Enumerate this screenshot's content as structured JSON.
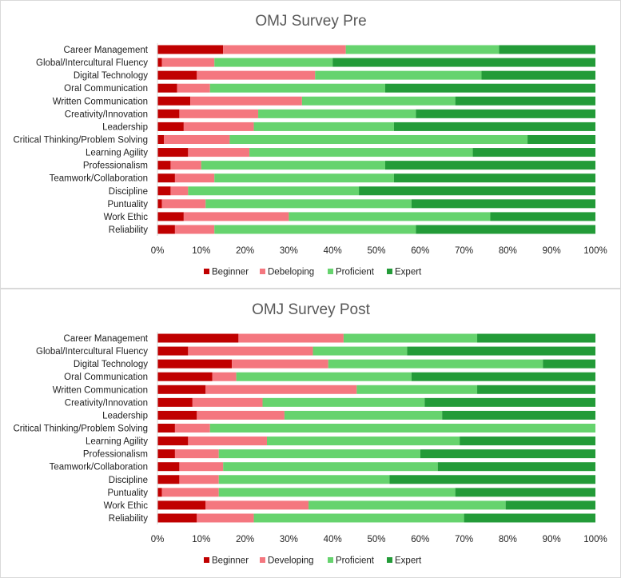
{
  "chart_data": [
    {
      "type": "bar",
      "stacked": "percent",
      "orientation": "horizontal",
      "title": "OMJ Survey Pre",
      "categories": [
        "Career Management",
        "Global/Intercultural Fluency",
        "Digital Technology",
        "Oral Communication",
        "Written Communication",
        "Creativity/Innovation",
        "Leadership",
        "Critical Thinking/Problem Solving",
        "Learning Agility",
        "Professionalism",
        "Teamwork/Collaboration",
        "Discipline",
        "Puntuality",
        "Work Ethic",
        "Reliability"
      ],
      "series": [
        {
          "name": "Beginner",
          "color": "#c00000",
          "values": [
            15,
            1,
            9,
            4.5,
            7.5,
            5,
            6,
            1.5,
            7,
            3,
            4,
            3,
            1,
            6,
            4
          ]
        },
        {
          "name": "Debeloping",
          "color": "#f4777f",
          "values": [
            28,
            12,
            27,
            7.5,
            25.5,
            18,
            16,
            15,
            14,
            7,
            9,
            4,
            10,
            24,
            9
          ]
        },
        {
          "name": "Proficient",
          "color": "#66d36e",
          "values": [
            35,
            27,
            38,
            40,
            35,
            36,
            32,
            68,
            51,
            42,
            41,
            39,
            47,
            46,
            46
          ]
        },
        {
          "name": "Expert",
          "color": "#239b38",
          "values": [
            22,
            60,
            26,
            48,
            32,
            41,
            46,
            15.5,
            28,
            48,
            46,
            54,
            42,
            24,
            41
          ]
        }
      ],
      "xlim": [
        0,
        100
      ],
      "xticks": [
        "0%",
        "10%",
        "20%",
        "30%",
        "40%",
        "50%",
        "60%",
        "70%",
        "80%",
        "90%",
        "100%"
      ],
      "legend": "bottom",
      "grid": false
    },
    {
      "type": "bar",
      "stacked": "percent",
      "orientation": "horizontal",
      "title": "OMJ Survey Post",
      "categories": [
        "Career Management",
        "Global/Intercultural Fluency",
        "Digital Technology",
        "Oral Communication",
        "Written Communication",
        "Creativity/Innovation",
        "Leadership",
        "Critical Thinking/Problem Solving",
        "Learning Agility",
        "Professionalism",
        "Teamwork/Collaboration",
        "Discipline",
        "Puntuality",
        "Work Ethic",
        "Reliability"
      ],
      "series": [
        {
          "name": "Beginner",
          "color": "#c00000",
          "values": [
            18.5,
            7,
            17,
            12.5,
            11,
            8,
            9,
            4,
            7,
            4,
            5,
            5,
            1,
            11,
            9
          ]
        },
        {
          "name": "Developing",
          "color": "#f4777f",
          "values": [
            24,
            28.5,
            22,
            5.5,
            34.5,
            16,
            20,
            8,
            18,
            10,
            10,
            9,
            13,
            23.5,
            13
          ]
        },
        {
          "name": "Proficient",
          "color": "#66d36e",
          "values": [
            30.5,
            21.5,
            49,
            40,
            27.5,
            37,
            36,
            88,
            44,
            46,
            49,
            39,
            54,
            45,
            48
          ]
        },
        {
          "name": "Expert",
          "color": "#239b38",
          "values": [
            27,
            43,
            12,
            42,
            27,
            39,
            35,
            0,
            31,
            40,
            36,
            47,
            32,
            20.5,
            30
          ]
        }
      ],
      "xlim": [
        0,
        100
      ],
      "xticks": [
        "0%",
        "10%",
        "20%",
        "30%",
        "40%",
        "50%",
        "60%",
        "70%",
        "80%",
        "90%",
        "100%"
      ],
      "legend": "bottom",
      "grid": false
    }
  ]
}
